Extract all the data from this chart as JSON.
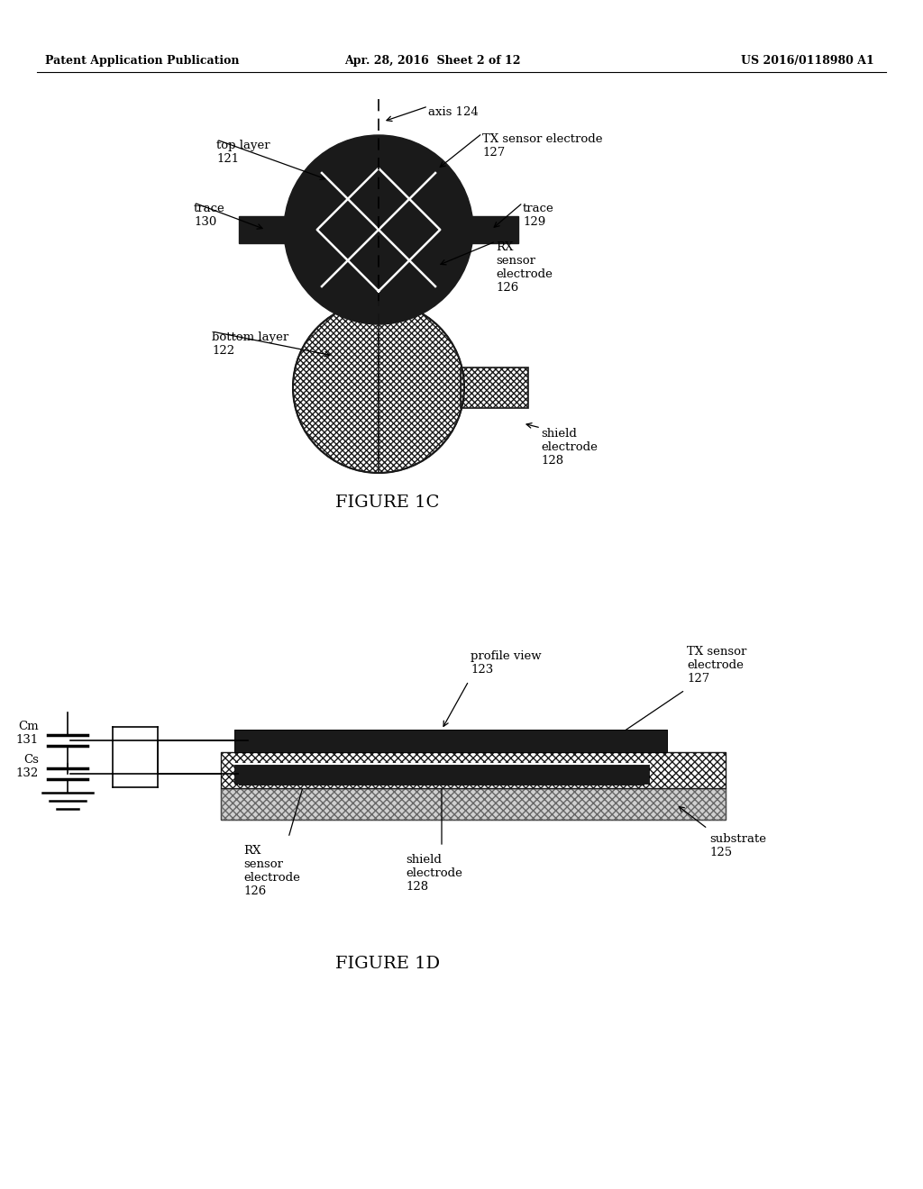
{
  "bg_color": "#ffffff",
  "header_left": "Patent Application Publication",
  "header_center": "Apr. 28, 2016  Sheet 2 of 12",
  "header_right": "US 2016/0118980 A1",
  "fig1c_label": "FIGURE 1C",
  "fig1d_label": "FIGURE 1D",
  "dark_color": "#1a1a1a",
  "white_color": "#ffffff",
  "gray_light": "#d0d0d0"
}
